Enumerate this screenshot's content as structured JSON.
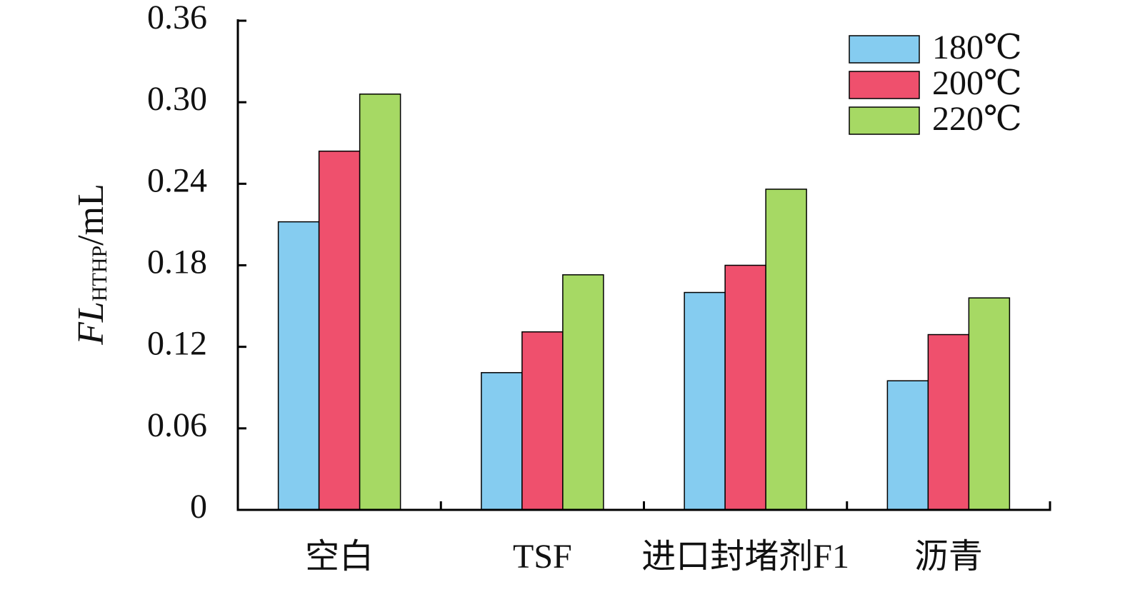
{
  "chart_data": {
    "type": "bar",
    "ylabel": {
      "main": "FL",
      "sub": "HTHP",
      "unit": "/mL"
    },
    "categories": [
      "空白",
      "TSF",
      "进口封堵剂F1",
      "沥青"
    ],
    "series": [
      {
        "name": "180℃",
        "color": "#85ccf0",
        "values": [
          0.212,
          0.101,
          0.16,
          0.095
        ]
      },
      {
        "name": "200℃",
        "color": "#ef506d",
        "values": [
          0.264,
          0.131,
          0.18,
          0.129
        ]
      },
      {
        "name": "220℃",
        "color": "#a6d964",
        "values": [
          0.306,
          0.173,
          0.236,
          0.156
        ]
      }
    ],
    "ylim": [
      0,
      0.36
    ],
    "yticks": [
      0,
      0.06,
      0.12,
      0.18,
      0.24,
      {
        "value": 0.3,
        "label": "0.30"
      },
      0.36
    ],
    "grid": false,
    "legend": "upper right"
  }
}
